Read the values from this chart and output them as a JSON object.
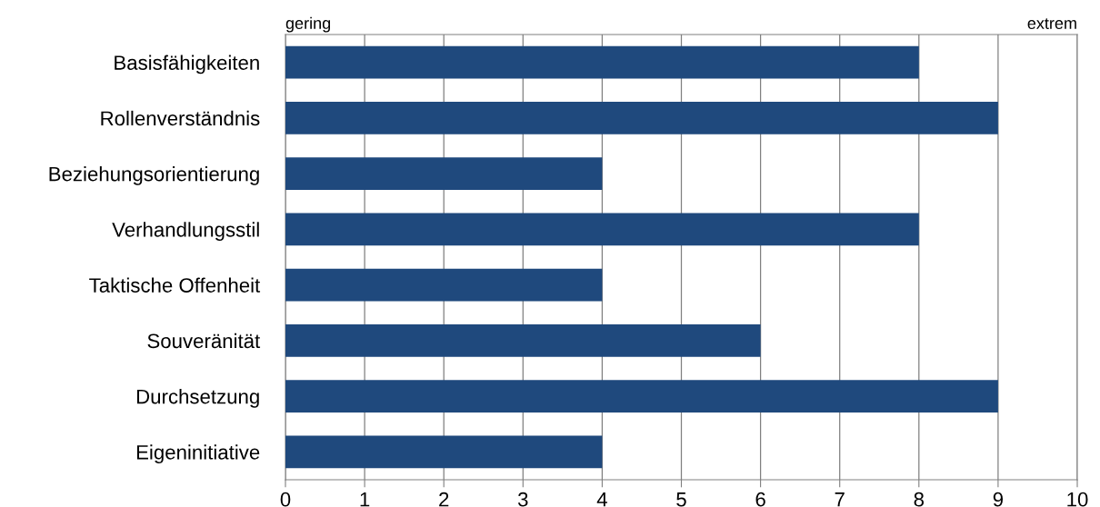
{
  "chart_data": {
    "type": "bar",
    "orientation": "horizontal",
    "categories": [
      "Basisfähigkeiten",
      "Rollenverständnis",
      "Beziehungsorientierung",
      "Verhandlungsstil",
      "Taktische Offenheit",
      "Souveränität",
      "Durchsetzung",
      "Eigeninitiative"
    ],
    "values": [
      8,
      9,
      4,
      8,
      4,
      6,
      9,
      4
    ],
    "color": "#1f497d",
    "xlim": [
      0,
      10
    ],
    "xticks": [
      0,
      1,
      2,
      3,
      4,
      5,
      6,
      7,
      8,
      9,
      10
    ],
    "grid": "x",
    "annotations": [
      "gering",
      "extrem"
    ]
  }
}
